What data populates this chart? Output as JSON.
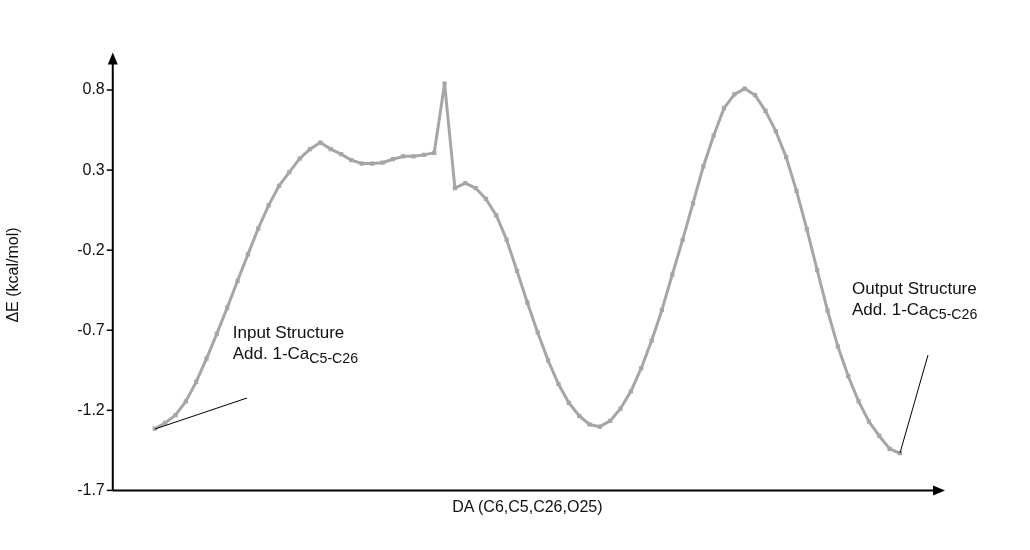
{
  "chart_data": {
    "type": "line",
    "xlabel": "DA (C6,C5,C26,O25)",
    "ylabel": "ΔE (kcal/mol)",
    "categories": [
      null,
      null,
      null,
      null,
      null,
      null,
      null,
      null,
      null,
      null,
      null,
      null,
      null,
      null,
      null,
      null,
      null,
      null,
      null,
      null,
      null,
      null,
      null,
      null,
      null,
      null,
      null,
      null,
      null,
      null,
      null,
      null,
      null,
      null,
      null,
      null,
      null,
      null,
      null,
      null,
      null,
      null,
      null,
      null,
      null,
      null,
      null,
      null,
      null,
      null,
      null,
      null,
      null,
      null,
      null,
      null,
      null,
      null,
      null,
      null,
      null,
      null,
      null,
      null,
      null,
      null,
      null,
      null,
      null,
      null,
      null,
      null,
      null
    ],
    "series": [
      {
        "color": "#a6a6a6",
        "values": [
          -1.315,
          -1.279,
          -1.23,
          -1.144,
          -1.023,
          -0.877,
          -0.721,
          -0.559,
          -0.391,
          -0.226,
          -0.064,
          0.08,
          0.201,
          0.287,
          0.372,
          0.431,
          0.472,
          0.431,
          0.4,
          0.362,
          0.341,
          0.341,
          0.346,
          0.368,
          0.386,
          0.386,
          0.395,
          0.408,
          0.84,
          0.188,
          0.219,
          0.188,
          0.12,
          0.017,
          -0.136,
          -0.33,
          -0.528,
          -0.715,
          -0.888,
          -1.036,
          -1.153,
          -1.234,
          -1.288,
          -1.302,
          -1.266,
          -1.189,
          -1.081,
          -0.937,
          -0.766,
          -0.573,
          -0.352,
          -0.136,
          0.093,
          0.323,
          0.516,
          0.687,
          0.773,
          0.809,
          0.768,
          0.67,
          0.543,
          0.381,
          0.17,
          -0.069,
          -0.325,
          -0.577,
          -0.802,
          -0.987,
          -1.144,
          -1.27,
          -1.36,
          -1.441,
          -1.468
        ]
      }
    ],
    "ylim": [
      -1.7,
      0.99
    ],
    "yticks": [
      -1.7,
      -1.2,
      -0.7,
      -0.2,
      0.3,
      0.8
    ],
    "annotations": [
      "Input Structure\nAdd. 1-Ca$_{C5-C26}$",
      "Output Structure\nAdd. 1-Ca$_{C5-C26}$"
    ],
    "tick_labels": "y",
    "grid": false,
    "legend": false,
    "marker": "square",
    "line_style": "solid"
  }
}
